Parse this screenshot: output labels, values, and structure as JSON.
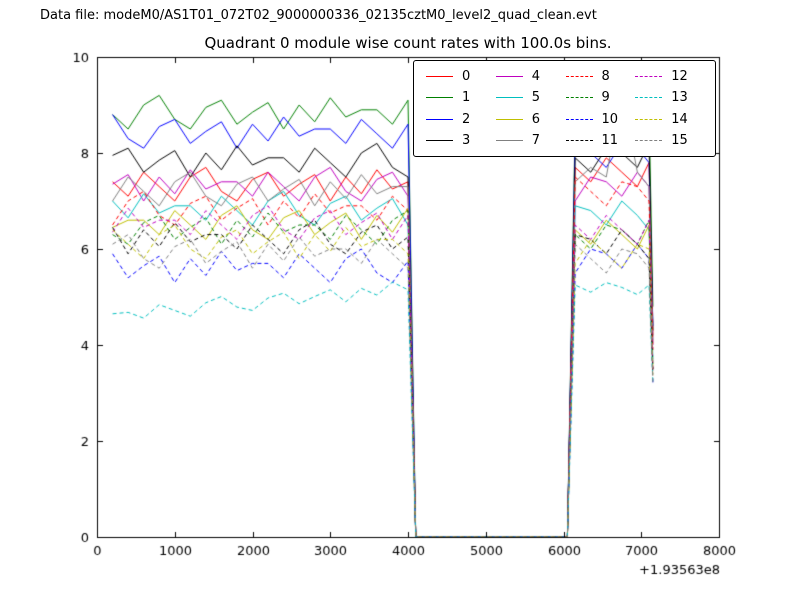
{
  "header": {
    "data_file_label": "Data file: modeM0/AS1T01_072T02_9000000336_02135cztM0_level2_quad_clean.evt"
  },
  "chart_data": {
    "type": "line",
    "title": "Quadrant 0 module wise count rates with 100.0s bins.",
    "xlabel": "",
    "ylabel": "",
    "xlim": [
      0,
      8000
    ],
    "ylim": [
      0,
      10
    ],
    "xticks": [
      0,
      1000,
      2000,
      3000,
      4000,
      5000,
      6000,
      7000,
      8000
    ],
    "yticks": [
      0,
      2,
      4,
      6,
      8,
      10
    ],
    "x_offset_label": "+1.93563e8",
    "grid": false,
    "legend_position": "upper right inside",
    "x": [
      200,
      400,
      600,
      800,
      1000,
      1200,
      1400,
      1600,
      1800,
      2000,
      2200,
      2400,
      2600,
      2800,
      3000,
      3200,
      3400,
      3600,
      3800,
      4000,
      4100,
      4300,
      4500,
      4700,
      4900,
      5100,
      5300,
      5500,
      5700,
      5900,
      6050,
      6150,
      6350,
      6550,
      6750,
      6950,
      7100,
      7150
    ],
    "series": [
      {
        "name": "0",
        "color": "#ff0000",
        "dash": false,
        "values": [
          7.4,
          7.1,
          7.6,
          7.3,
          7.0,
          7.5,
          7.7,
          7.2,
          7.0,
          7.45,
          7.6,
          7.1,
          7.35,
          7.55,
          7.0,
          7.5,
          7.15,
          7.65,
          7.25,
          7.4,
          0,
          0,
          0,
          0,
          0,
          0,
          0,
          0,
          0,
          0,
          0,
          7.7,
          7.4,
          7.9,
          7.6,
          7.3,
          7.8,
          4.2
        ]
      },
      {
        "name": "1",
        "color": "#008000",
        "dash": false,
        "values": [
          8.8,
          8.5,
          9.0,
          9.2,
          8.7,
          8.5,
          8.95,
          9.1,
          8.6,
          8.85,
          9.05,
          8.5,
          9.0,
          8.65,
          9.15,
          8.75,
          8.9,
          8.9,
          8.6,
          9.1,
          0,
          0,
          0,
          0,
          0,
          0,
          0,
          0,
          0,
          0,
          0,
          8.6,
          9.1,
          8.8,
          8.5,
          9.0,
          8.9,
          4.8
        ]
      },
      {
        "name": "2",
        "color": "#0000ff",
        "dash": false,
        "values": [
          8.8,
          8.3,
          8.1,
          8.55,
          8.7,
          8.2,
          8.45,
          8.65,
          8.1,
          8.6,
          8.25,
          8.75,
          8.35,
          8.5,
          8.5,
          8.2,
          8.7,
          8.4,
          8.1,
          8.6,
          0,
          0,
          0,
          0,
          0,
          0,
          0,
          0,
          0,
          0,
          0,
          8.3,
          8.0,
          7.7,
          8.2,
          8.1,
          7.8,
          4.4
        ]
      },
      {
        "name": "3",
        "color": "#000000",
        "dash": false,
        "values": [
          7.95,
          8.1,
          7.6,
          7.85,
          8.05,
          7.5,
          8.0,
          7.65,
          8.15,
          7.75,
          7.9,
          7.9,
          7.6,
          8.1,
          7.8,
          7.5,
          8.0,
          8.2,
          7.7,
          7.5,
          0,
          0,
          0,
          0,
          0,
          0,
          0,
          0,
          0,
          0,
          0,
          7.9,
          7.6,
          8.1,
          8.0,
          7.7,
          8.2,
          4.3
        ]
      },
      {
        "name": "4",
        "color": "#bf00bf",
        "dash": false,
        "values": [
          7.35,
          7.55,
          7.0,
          7.5,
          7.15,
          7.65,
          7.25,
          7.4,
          7.4,
          7.1,
          7.6,
          7.3,
          7.0,
          7.5,
          7.7,
          7.2,
          7.0,
          7.45,
          7.6,
          7.1,
          0,
          0,
          0,
          0,
          0,
          0,
          0,
          0,
          0,
          0,
          0,
          7.0,
          7.5,
          7.4,
          7.1,
          7.6,
          7.3,
          4.0
        ]
      },
      {
        "name": "5",
        "color": "#00bfbf",
        "dash": false,
        "values": [
          7.0,
          6.65,
          7.15,
          6.75,
          6.9,
          6.9,
          6.6,
          7.1,
          6.8,
          6.5,
          7.0,
          7.2,
          6.7,
          6.5,
          6.95,
          7.1,
          6.6,
          6.85,
          7.05,
          6.5,
          0,
          0,
          0,
          0,
          0,
          0,
          0,
          0,
          0,
          0,
          0,
          6.9,
          6.8,
          6.5,
          7.0,
          6.7,
          6.4,
          3.7
        ]
      },
      {
        "name": "6",
        "color": "#bfbf00",
        "dash": false,
        "values": [
          6.45,
          6.6,
          6.6,
          6.3,
          6.8,
          6.5,
          6.2,
          6.7,
          6.9,
          6.4,
          6.2,
          6.65,
          6.8,
          6.3,
          6.55,
          6.75,
          6.2,
          6.7,
          6.35,
          6.85,
          0,
          0,
          0,
          0,
          0,
          0,
          0,
          0,
          0,
          0,
          0,
          6.4,
          6.1,
          6.6,
          6.3,
          6.0,
          6.5,
          3.5
        ]
      },
      {
        "name": "7",
        "color": "#808080",
        "dash": false,
        "values": [
          7.0,
          7.5,
          7.2,
          6.9,
          7.4,
          7.6,
          7.1,
          6.9,
          7.35,
          7.5,
          7.0,
          7.25,
          7.45,
          6.9,
          7.4,
          7.05,
          7.55,
          7.15,
          7.3,
          7.3,
          0,
          0,
          0,
          0,
          0,
          0,
          0,
          0,
          0,
          0,
          0,
          7.4,
          7.7,
          7.5,
          9.3,
          7.6,
          7.3,
          4.1
        ]
      },
      {
        "name": "8",
        "color": "#ff0000",
        "dash": true,
        "values": [
          6.5,
          7.0,
          7.2,
          6.7,
          6.5,
          6.95,
          7.1,
          6.6,
          6.85,
          7.05,
          6.5,
          7.0,
          6.65,
          7.15,
          6.75,
          6.9,
          6.9,
          6.6,
          7.1,
          6.8,
          0,
          0,
          0,
          0,
          0,
          0,
          0,
          0,
          0,
          0,
          0,
          7.5,
          7.2,
          6.9,
          7.4,
          7.3,
          7.0,
          3.9
        ]
      },
      {
        "name": "9",
        "color": "#008000",
        "dash": true,
        "values": [
          6.3,
          6.1,
          6.55,
          6.7,
          6.2,
          6.45,
          6.65,
          6.1,
          6.6,
          6.25,
          6.75,
          6.35,
          6.5,
          6.5,
          6.2,
          6.7,
          6.4,
          6.1,
          6.6,
          6.8,
          0,
          0,
          0,
          0,
          0,
          0,
          0,
          0,
          0,
          0,
          0,
          6.3,
          6.0,
          6.5,
          6.4,
          6.1,
          6.6,
          3.5
        ]
      },
      {
        "name": "10",
        "color": "#0000ff",
        "dash": true,
        "values": [
          5.9,
          5.4,
          5.65,
          5.85,
          5.3,
          5.8,
          5.45,
          5.95,
          5.55,
          5.7,
          5.7,
          5.4,
          5.9,
          5.6,
          5.3,
          5.8,
          6.0,
          5.5,
          5.3,
          5.75,
          0,
          0,
          0,
          0,
          0,
          0,
          0,
          0,
          0,
          0,
          0,
          5.5,
          6.0,
          5.9,
          5.6,
          6.1,
          5.8,
          3.2
        ]
      },
      {
        "name": "11",
        "color": "#000000",
        "dash": true,
        "values": [
          6.45,
          5.9,
          6.4,
          6.05,
          6.55,
          6.15,
          6.3,
          6.3,
          6.0,
          6.5,
          6.2,
          5.9,
          6.4,
          6.6,
          6.1,
          5.9,
          6.35,
          6.5,
          6.0,
          6.25,
          0,
          0,
          0,
          0,
          0,
          0,
          0,
          0,
          0,
          0,
          0,
          6.3,
          6.2,
          5.9,
          6.4,
          6.1,
          5.8,
          3.4
        ]
      },
      {
        "name": "12",
        "color": "#bf00bf",
        "dash": true,
        "values": [
          6.35,
          6.85,
          6.45,
          6.6,
          6.6,
          6.3,
          6.8,
          6.5,
          6.2,
          6.7,
          6.9,
          6.4,
          6.2,
          6.65,
          6.8,
          6.3,
          6.55,
          6.75,
          6.2,
          6.7,
          0,
          0,
          0,
          0,
          0,
          0,
          0,
          0,
          0,
          0,
          0,
          6.5,
          6.2,
          6.7,
          6.4,
          6.1,
          6.6,
          3.5
        ]
      },
      {
        "name": "13",
        "color": "#00bfbf",
        "dash": true,
        "values": [
          4.65,
          4.68,
          4.56,
          4.84,
          4.72,
          4.6,
          4.88,
          5.01,
          4.79,
          4.72,
          4.98,
          5.08,
          4.86,
          5.01,
          5.15,
          4.9,
          5.18,
          5.04,
          5.31,
          5.15,
          0,
          0,
          0,
          0,
          0,
          0,
          0,
          0,
          0,
          0,
          0,
          5.25,
          5.1,
          5.3,
          5.2,
          5.05,
          5.25,
          3.2
        ]
      },
      {
        "name": "14",
        "color": "#bfbf00",
        "dash": true,
        "values": [
          6.4,
          6.1,
          5.8,
          6.3,
          6.5,
          6.0,
          5.8,
          6.25,
          6.4,
          5.9,
          6.15,
          6.35,
          5.8,
          6.3,
          5.95,
          6.45,
          6.05,
          6.2,
          6.2,
          5.9,
          0,
          0,
          0,
          0,
          0,
          0,
          0,
          0,
          0,
          0,
          0,
          5.7,
          6.2,
          5.9,
          5.6,
          6.1,
          6.0,
          3.3
        ]
      },
      {
        "name": "15",
        "color": "#808080",
        "dash": true,
        "values": [
          6.1,
          6.3,
          5.8,
          5.6,
          6.05,
          6.2,
          5.7,
          5.95,
          6.15,
          5.6,
          6.1,
          5.75,
          6.25,
          5.85,
          6.0,
          6.0,
          5.7,
          6.2,
          5.9,
          5.6,
          0,
          0,
          0,
          0,
          0,
          0,
          0,
          0,
          0,
          0,
          0,
          6.1,
          5.8,
          5.5,
          6.0,
          5.9,
          5.6,
          3.2
        ]
      }
    ]
  }
}
